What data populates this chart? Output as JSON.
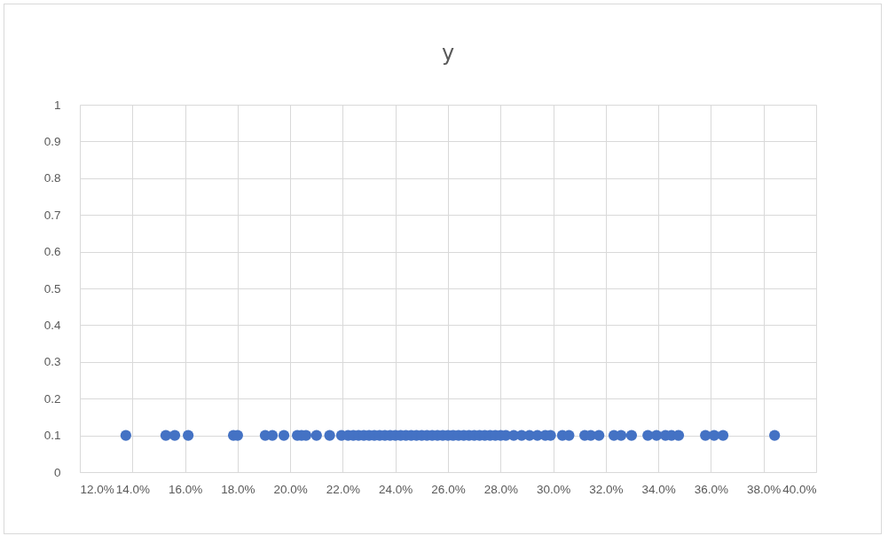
{
  "chart_data": {
    "type": "scatter",
    "title": "y",
    "x": [
      13.75,
      15.27,
      15.61,
      16.12,
      17.84,
      18.0,
      19.05,
      19.32,
      19.76,
      20.27,
      20.43,
      20.6,
      21.0,
      21.5,
      21.95,
      22.2,
      22.4,
      22.6,
      22.8,
      23.0,
      23.2,
      23.4,
      23.6,
      23.8,
      24.0,
      24.2,
      24.4,
      24.6,
      24.8,
      25.0,
      25.2,
      25.4,
      25.6,
      25.8,
      26.0,
      26.2,
      26.4,
      26.6,
      26.8,
      27.0,
      27.2,
      27.4,
      27.6,
      27.8,
      28.0,
      28.2,
      28.5,
      28.8,
      29.1,
      29.4,
      29.7,
      29.9,
      30.35,
      30.6,
      31.2,
      31.43,
      31.74,
      32.31,
      32.58,
      32.98,
      33.6,
      33.93,
      34.27,
      34.5,
      34.77,
      35.79,
      36.12,
      36.46,
      38.42
    ],
    "series": [
      {
        "color": "#4472c4",
        "values": [
          0.1,
          0.1,
          0.1,
          0.1,
          0.1,
          0.1,
          0.1,
          0.1,
          0.1,
          0.1,
          0.1,
          0.1,
          0.1,
          0.1,
          0.1,
          0.1,
          0.1,
          0.1,
          0.1,
          0.1,
          0.1,
          0.1,
          0.1,
          0.1,
          0.1,
          0.1,
          0.1,
          0.1,
          0.1,
          0.1,
          0.1,
          0.1,
          0.1,
          0.1,
          0.1,
          0.1,
          0.1,
          0.1,
          0.1,
          0.1,
          0.1,
          0.1,
          0.1,
          0.1,
          0.1,
          0.1,
          0.1,
          0.1,
          0.1,
          0.1,
          0.1,
          0.1,
          0.1,
          0.1,
          0.1,
          0.1,
          0.1,
          0.1,
          0.1,
          0.1,
          0.1,
          0.1,
          0.1,
          0.1,
          0.1,
          0.1,
          0.1,
          0.1,
          0.1
        ]
      }
    ],
    "xlim": [
      12,
      40
    ],
    "xticks": [
      {
        "value": 12,
        "label": "12.0%"
      },
      {
        "value": 14,
        "label": "14.0%"
      },
      {
        "value": 16,
        "label": "16.0%"
      },
      {
        "value": 18,
        "label": "18.0%"
      },
      {
        "value": 20,
        "label": "20.0%"
      },
      {
        "value": 22,
        "label": "22.0%"
      },
      {
        "value": 24,
        "label": "24.0%"
      },
      {
        "value": 26,
        "label": "26.0%"
      },
      {
        "value": 28,
        "label": "28.0%"
      },
      {
        "value": 30,
        "label": "30.0%"
      },
      {
        "value": 32,
        "label": "32.0%"
      },
      {
        "value": 34,
        "label": "34.0%"
      },
      {
        "value": 36,
        "label": "36.0%"
      },
      {
        "value": 38,
        "label": "38.0%"
      },
      {
        "value": 40,
        "label": "40.0%"
      }
    ],
    "ylim": [
      0,
      1
    ],
    "yticks": [
      0,
      0.1,
      0.2,
      0.3,
      0.4,
      0.5,
      0.6,
      0.7,
      0.8,
      0.9,
      1
    ],
    "grid": true,
    "marker": "circle"
  }
}
